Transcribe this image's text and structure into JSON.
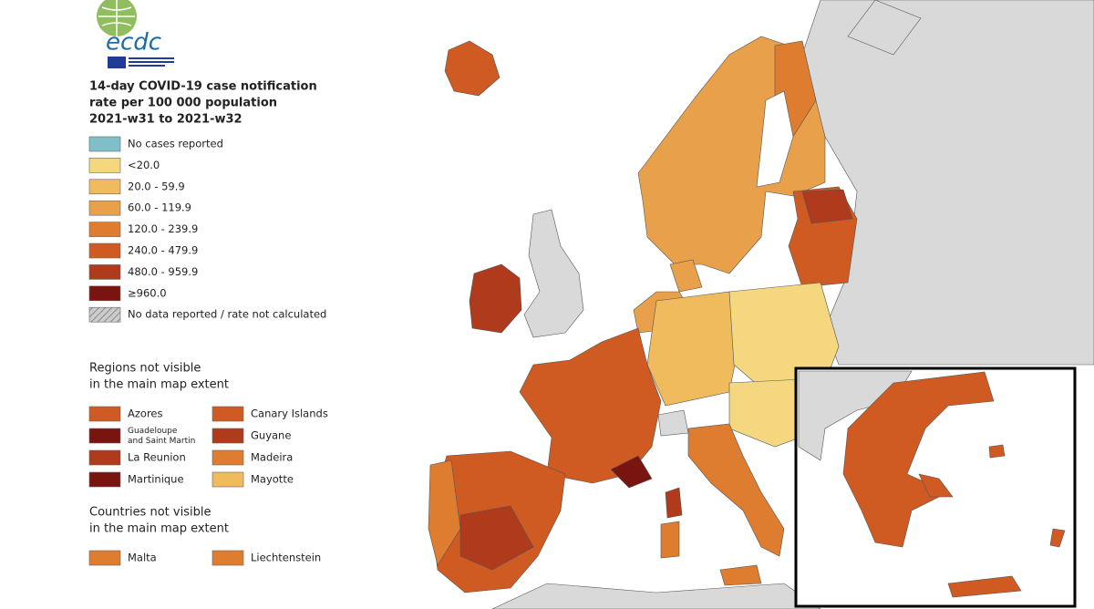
{
  "logo": "ecdc",
  "title": [
    "14-day COVID-19 case notification",
    "rate per 100 000 population",
    "2021-w31 to 2021-w32"
  ],
  "legend": [
    {
      "label": "No cases reported",
      "color": "#7fbfca"
    },
    {
      "label": "<20.0",
      "color": "#f5d77f"
    },
    {
      "label": "20.0 - 59.9",
      "color": "#efbb5c"
    },
    {
      "label": "60.0 - 119.9",
      "color": "#e8a04a"
    },
    {
      "label": "120.0 - 239.9",
      "color": "#de7c30"
    },
    {
      "label": "240.0 - 479.9",
      "color": "#cf5a22"
    },
    {
      "label": "480.0 - 959.9",
      "color": "#b03a1c"
    },
    {
      "label": "≥960.0",
      "color": "#7a1410"
    },
    {
      "label": "No data reported / rate not calculated",
      "color": "hatch"
    }
  ],
  "regions": {
    "title": [
      "Regions not visible",
      "in the main map extent"
    ],
    "items": [
      {
        "label": "Azores",
        "color": "#cf5a22"
      },
      {
        "label": "Canary Islands",
        "color": "#cf5a22"
      },
      {
        "label": "Guadeloupe and Saint Martin",
        "color": "#7a1410"
      },
      {
        "label": "Guyane",
        "color": "#b03a1c"
      },
      {
        "label": "La Reunion",
        "color": "#b03a1c"
      },
      {
        "label": "Madeira",
        "color": "#de7c30"
      },
      {
        "label": "Martinique",
        "color": "#7a1410"
      },
      {
        "label": "Mayotte",
        "color": "#efbb5c"
      }
    ]
  },
  "countries": {
    "title": [
      "Countries not visible",
      "in the main map extent"
    ],
    "items": [
      {
        "label": "Malta",
        "color": "#de7c30"
      },
      {
        "label": "Liechtenstein",
        "color": "#de7c30"
      }
    ]
  }
}
